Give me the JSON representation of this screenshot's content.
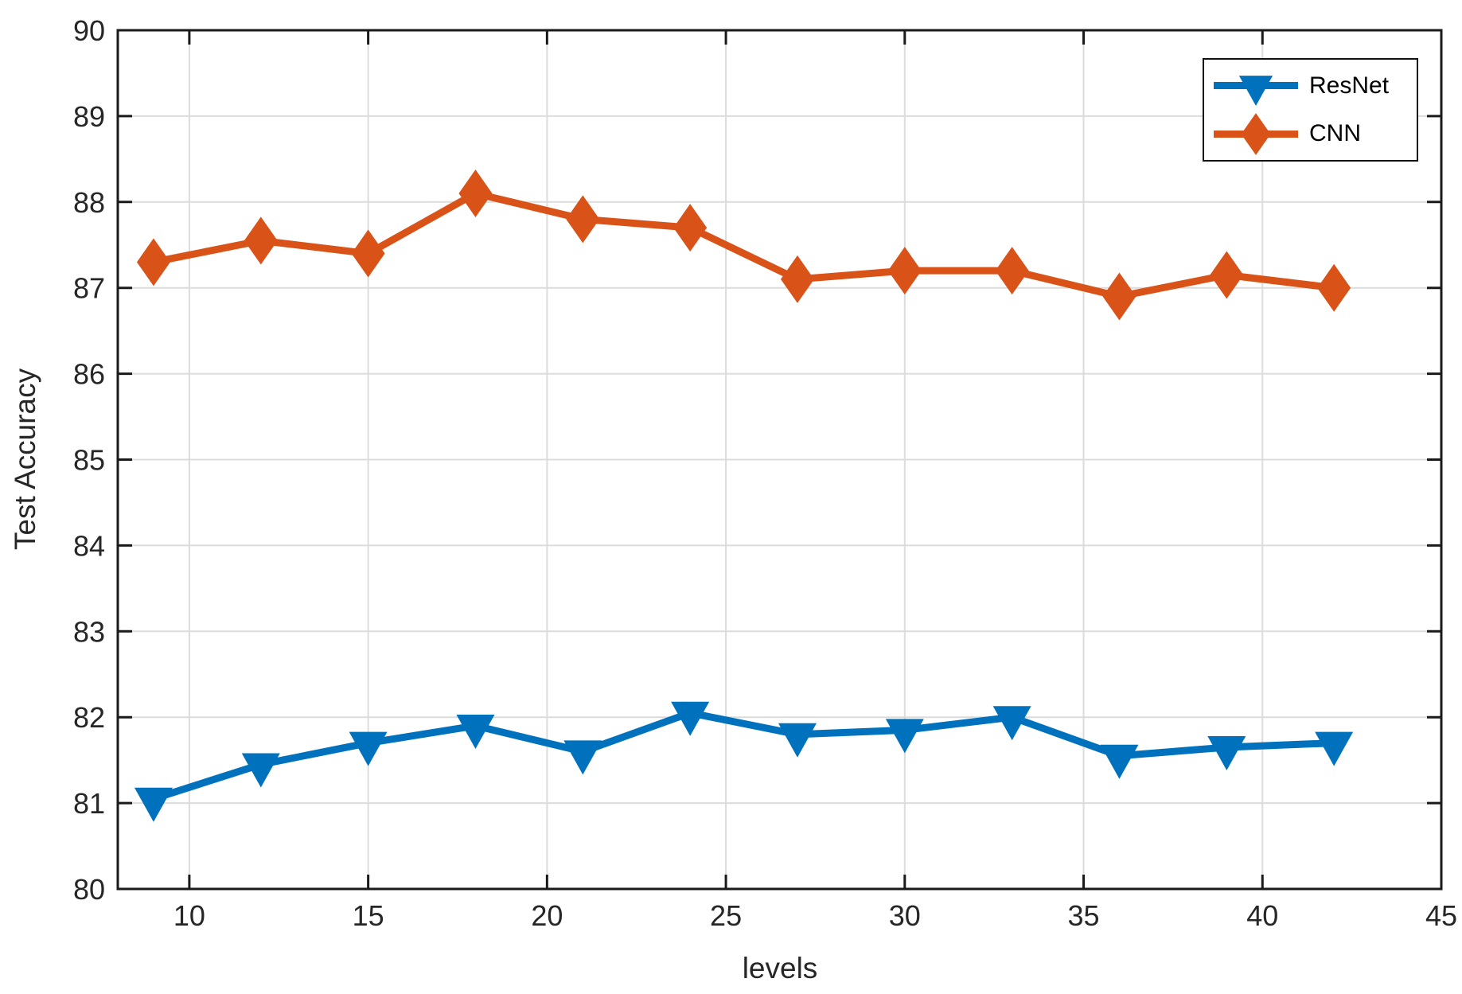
{
  "chart_data": {
    "type": "line",
    "title": "",
    "xlabel": "levels",
    "ylabel": "Test Accuracy",
    "xlim": [
      8,
      45
    ],
    "ylim": [
      80,
      90
    ],
    "xticks": [
      10,
      15,
      20,
      25,
      30,
      35,
      40,
      45
    ],
    "yticks": [
      80,
      81,
      82,
      83,
      84,
      85,
      86,
      87,
      88,
      89,
      90
    ],
    "grid": true,
    "legend_position": "northeast",
    "x": [
      9,
      12,
      15,
      18,
      21,
      24,
      27,
      30,
      33,
      36,
      39,
      42
    ],
    "series": [
      {
        "name": "ResNet",
        "color": "#0072BD",
        "marker": "triangle-down",
        "values": [
          81.05,
          81.45,
          81.7,
          81.9,
          81.6,
          82.05,
          81.8,
          81.85,
          82.0,
          81.55,
          81.65,
          81.7
        ]
      },
      {
        "name": "CNN",
        "color": "#D95319",
        "marker": "diamond",
        "values": [
          87.3,
          87.55,
          87.4,
          88.1,
          87.8,
          87.7,
          87.1,
          87.2,
          87.2,
          86.9,
          87.15,
          87.0
        ]
      }
    ],
    "colors": {
      "background": "#FFFFFF",
      "grid": "#DCDCDC",
      "axis": "#1A1A1A",
      "tick_text": "#262626"
    }
  }
}
